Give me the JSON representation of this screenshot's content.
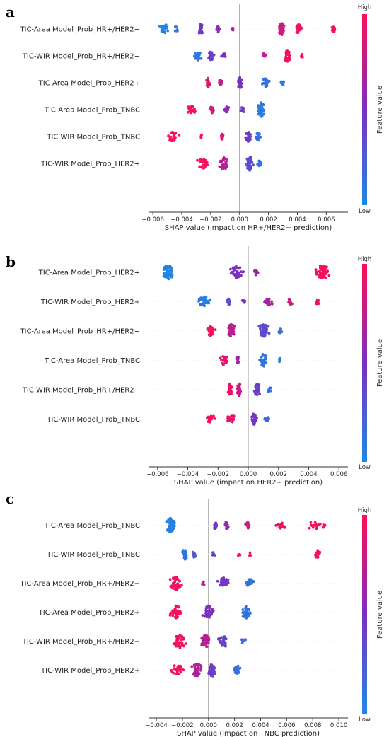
{
  "colorbar": {
    "high_label": "High",
    "low_label": "Low",
    "title": "Feature value",
    "color_low": "#1E88E5",
    "color_mid": "#7B2FBF",
    "color_high": "#FF0D57"
  },
  "chart_data": [
    {
      "panel_label": "a",
      "type": "scatter",
      "subtype": "shap-beeswarm",
      "xlabel": "SHAP value (impact on HR+/HER2− prediction)",
      "xlim": [
        -0.0063,
        0.0075
      ],
      "xticks": [
        -0.006,
        -0.004,
        -0.002,
        0.0,
        0.002,
        0.004,
        0.006
      ],
      "xtick_labels": [
        "−0.006",
        "−0.004",
        "−0.002",
        "0.000",
        "0.002",
        "0.004",
        "0.006"
      ],
      "features": [
        {
          "name": "TIC-Area Model_Prob_HR+/HER2−",
          "clusters": [
            {
              "x": -0.0052,
              "spread": 0.00025,
              "n": 26,
              "color": 0.02
            },
            {
              "x": -0.0044,
              "spread": 0.00018,
              "n": 8,
              "color": 0.12
            },
            {
              "x": -0.0027,
              "spread": 0.00015,
              "n": 26,
              "color": 0.45
            },
            {
              "x": -0.0015,
              "spread": 0.00012,
              "n": 14,
              "color": 0.55
            },
            {
              "x": -0.0005,
              "spread": 0.0001,
              "n": 5,
              "color": 0.7
            },
            {
              "x": 0.0029,
              "spread": 0.00015,
              "n": 34,
              "color": 0.82
            },
            {
              "x": 0.0041,
              "spread": 0.00018,
              "n": 22,
              "color": 0.95
            },
            {
              "x": 0.0065,
              "spread": 0.00012,
              "n": 14,
              "color": 1.0
            }
          ]
        },
        {
          "name": "TIC-WIR Model_Prob_HR+/HER2−",
          "clusters": [
            {
              "x": -0.0029,
              "spread": 0.0002,
              "n": 22,
              "color": 0.12
            },
            {
              "x": -0.002,
              "spread": 0.00017,
              "n": 22,
              "color": 0.4
            },
            {
              "x": -0.0011,
              "spread": 0.00012,
              "n": 10,
              "color": 0.55
            },
            {
              "x": 0.0017,
              "spread": 0.0001,
              "n": 10,
              "color": 0.78
            },
            {
              "x": 0.0033,
              "spread": 0.00018,
              "n": 32,
              "color": 0.95
            },
            {
              "x": 0.0043,
              "spread": 0.0001,
              "n": 6,
              "color": 1.0
            }
          ]
        },
        {
          "name": "TIC-Area Model_Prob_HER2+",
          "clusters": [
            {
              "x": -0.0022,
              "spread": 0.00012,
              "n": 24,
              "color": 0.9
            },
            {
              "x": -0.0013,
              "spread": 0.00015,
              "n": 14,
              "color": 0.72
            },
            {
              "x": 0.0,
              "spread": 0.00017,
              "n": 30,
              "color": 0.48
            },
            {
              "x": 0.0018,
              "spread": 0.00022,
              "n": 24,
              "color": 0.12
            },
            {
              "x": 0.003,
              "spread": 0.00015,
              "n": 10,
              "color": 0.06
            }
          ]
        },
        {
          "name": "TIC-Area Model_Prob_TNBC",
          "clusters": [
            {
              "x": -0.0033,
              "spread": 0.00025,
              "n": 20,
              "color": 1.0
            },
            {
              "x": -0.0019,
              "spread": 0.00012,
              "n": 16,
              "color": 0.82
            },
            {
              "x": -0.0009,
              "spread": 0.00012,
              "n": 16,
              "color": 0.55
            },
            {
              "x": 0.0002,
              "spread": 0.00012,
              "n": 12,
              "color": 0.38
            },
            {
              "x": 0.0015,
              "spread": 0.0002,
              "n": 55,
              "color": 0.08
            }
          ]
        },
        {
          "name": "TIC-WIR Model_Prob_TNBC",
          "clusters": [
            {
              "x": -0.0046,
              "spread": 0.0004,
              "n": 24,
              "color": 1.0
            },
            {
              "x": -0.0026,
              "spread": 0.0001,
              "n": 4,
              "color": 0.95
            },
            {
              "x": -0.0012,
              "spread": 0.0002,
              "n": 10,
              "color": 0.88
            },
            {
              "x": 0.0006,
              "spread": 0.00015,
              "n": 26,
              "color": 0.45
            },
            {
              "x": 0.0013,
              "spread": 0.00015,
              "n": 20,
              "color": 0.12
            }
          ]
        },
        {
          "name": "TIC-WIR Model_Prob_HER2+",
          "clusters": [
            {
              "x": -0.0025,
              "spread": 0.00035,
              "n": 26,
              "color": 0.95
            },
            {
              "x": -0.0011,
              "spread": 0.0003,
              "n": 34,
              "color": 0.7
            },
            {
              "x": 0.0007,
              "spread": 0.00025,
              "n": 40,
              "color": 0.35
            },
            {
              "x": 0.0014,
              "spread": 0.00015,
              "n": 10,
              "color": 0.15
            }
          ]
        }
      ]
    },
    {
      "panel_label": "b",
      "type": "scatter",
      "subtype": "shap-beeswarm",
      "xlabel": "SHAP value (impact on HER2+ prediction)",
      "xlim": [
        -0.0066,
        0.0066
      ],
      "xticks": [
        -0.006,
        -0.004,
        -0.002,
        0.0,
        0.002,
        0.004,
        0.006
      ],
      "xtick_labels": [
        "−0.006",
        "−0.004",
        "−0.002",
        "0.000",
        "0.002",
        "0.004",
        "0.006"
      ],
      "features": [
        {
          "name": "TIC-Area Model_Prob_HER2+",
          "clusters": [
            {
              "x": -0.0053,
              "spread": 0.0003,
              "n": 50,
              "color": 0.03
            },
            {
              "x": -0.0008,
              "spread": 0.00035,
              "n": 34,
              "color": 0.5
            },
            {
              "x": 0.0005,
              "spread": 0.00015,
              "n": 12,
              "color": 0.62
            },
            {
              "x": 0.0049,
              "spread": 0.0004,
              "n": 60,
              "color": 0.95
            }
          ]
        },
        {
          "name": "TIC-WIR Model_Prob_HER2+",
          "clusters": [
            {
              "x": -0.0029,
              "spread": 0.00028,
              "n": 26,
              "color": 0.08
            },
            {
              "x": -0.0013,
              "spread": 0.0001,
              "n": 14,
              "color": 0.3
            },
            {
              "x": -0.0003,
              "spread": 0.0001,
              "n": 6,
              "color": 0.5
            },
            {
              "x": 0.0013,
              "spread": 0.00025,
              "n": 18,
              "color": 0.65
            },
            {
              "x": 0.0028,
              "spread": 0.00015,
              "n": 12,
              "color": 0.8
            },
            {
              "x": 0.0046,
              "spread": 0.00012,
              "n": 10,
              "color": 1.0
            }
          ]
        },
        {
          "name": "TIC-Area Model_Prob_HR+/HER2−",
          "clusters": [
            {
              "x": -0.0025,
              "spread": 0.00025,
              "n": 30,
              "color": 1.0
            },
            {
              "x": -0.0011,
              "spread": 0.0002,
              "n": 40,
              "color": 0.75
            },
            {
              "x": 0.001,
              "spread": 0.0003,
              "n": 50,
              "color": 0.35
            },
            {
              "x": 0.0021,
              "spread": 0.00012,
              "n": 10,
              "color": 0.12
            }
          ]
        },
        {
          "name": "TIC-Area Model_Prob_TNBC",
          "clusters": [
            {
              "x": -0.0016,
              "spread": 0.0002,
              "n": 24,
              "color": 0.92
            },
            {
              "x": -0.0007,
              "spread": 8e-05,
              "n": 16,
              "color": 0.6
            },
            {
              "x": 0.001,
              "spread": 0.0002,
              "n": 36,
              "color": 0.12
            },
            {
              "x": 0.0021,
              "spread": 8e-05,
              "n": 4,
              "color": 0.05
            }
          ]
        },
        {
          "name": "TIC-WIR Model_Prob_HR+/HER2−",
          "clusters": [
            {
              "x": -0.0012,
              "spread": 0.0001,
              "n": 34,
              "color": 0.95
            },
            {
              "x": -0.0006,
              "spread": 0.00012,
              "n": 36,
              "color": 0.78
            },
            {
              "x": 0.0006,
              "spread": 0.00018,
              "n": 34,
              "color": 0.4
            },
            {
              "x": 0.0014,
              "spread": 0.00012,
              "n": 8,
              "color": 0.15
            }
          ]
        },
        {
          "name": "TIC-WIR Model_Prob_TNBC",
          "clusters": [
            {
              "x": -0.0025,
              "spread": 0.00025,
              "n": 16,
              "color": 1.0
            },
            {
              "x": -0.0011,
              "spread": 0.00025,
              "n": 16,
              "color": 0.92
            },
            {
              "x": 0.0004,
              "spread": 0.00015,
              "n": 30,
              "color": 0.45
            },
            {
              "x": 0.0012,
              "spread": 0.00015,
              "n": 12,
              "color": 0.15
            }
          ]
        }
      ]
    },
    {
      "panel_label": "c",
      "type": "scatter",
      "subtype": "shap-beeswarm",
      "xlabel": "SHAP value (impact on TNBC prediction)",
      "xlim": [
        -0.0046,
        0.0107
      ],
      "xticks": [
        -0.004,
        -0.002,
        0.0,
        0.002,
        0.004,
        0.006,
        0.008,
        0.01
      ],
      "xtick_labels": [
        "−0.004",
        "−0.002",
        "0.000",
        "0.002",
        "0.004",
        "0.006",
        "0.008",
        "0.010"
      ],
      "features": [
        {
          "name": "TIC-Area Model_Prob_TNBC",
          "clusters": [
            {
              "x": -0.0029,
              "spread": 0.00035,
              "n": 50,
              "color": 0.03
            },
            {
              "x": 0.0005,
              "spread": 0.0001,
              "n": 16,
              "color": 0.45
            },
            {
              "x": 0.0014,
              "spread": 0.0001,
              "n": 20,
              "color": 0.6
            },
            {
              "x": 0.003,
              "spread": 0.00012,
              "n": 16,
              "color": 0.85
            },
            {
              "x": 0.0055,
              "spread": 0.0004,
              "n": 16,
              "color": 0.97
            },
            {
              "x": 0.0082,
              "spread": 0.0006,
              "n": 18,
              "color": 1.0
            }
          ]
        },
        {
          "name": "TIC-WIR Model_Prob_TNBC",
          "clusters": [
            {
              "x": -0.0018,
              "spread": 0.0002,
              "n": 30,
              "color": 0.12
            },
            {
              "x": -0.0011,
              "spread": 0.0001,
              "n": 16,
              "color": 0.25
            },
            {
              "x": 0.0004,
              "spread": 0.0001,
              "n": 5,
              "color": 0.4
            },
            {
              "x": 0.0023,
              "spread": 0.0001,
              "n": 4,
              "color": 0.9
            },
            {
              "x": 0.0032,
              "spread": 0.0001,
              "n": 4,
              "color": 0.95
            },
            {
              "x": 0.0084,
              "spread": 0.0002,
              "n": 18,
              "color": 1.0
            }
          ]
        },
        {
          "name": "TIC-Area Model_Prob_HR+/HER2−",
          "clusters": [
            {
              "x": -0.0025,
              "spread": 0.00035,
              "n": 40,
              "color": 0.95
            },
            {
              "x": -0.0004,
              "spread": 0.0001,
              "n": 5,
              "color": 0.75
            },
            {
              "x": 0.0012,
              "spread": 0.00035,
              "n": 30,
              "color": 0.45
            },
            {
              "x": 0.0032,
              "spread": 0.00025,
              "n": 20,
              "color": 0.12
            }
          ]
        },
        {
          "name": "TIC-Area Model_Prob_HER2+",
          "clusters": [
            {
              "x": -0.0025,
              "spread": 0.00035,
              "n": 36,
              "color": 0.95
            },
            {
              "x": 0.0,
              "spread": 0.00035,
              "n": 36,
              "color": 0.5
            },
            {
              "x": 0.0029,
              "spread": 0.0003,
              "n": 34,
              "color": 0.12
            }
          ]
        },
        {
          "name": "TIC-WIR Model_Prob_HR+/HER2−",
          "clusters": [
            {
              "x": -0.0022,
              "spread": 0.00035,
              "n": 40,
              "color": 0.95
            },
            {
              "x": -0.0002,
              "spread": 0.0003,
              "n": 40,
              "color": 0.72
            },
            {
              "x": 0.0012,
              "spread": 0.00035,
              "n": 30,
              "color": 0.4
            },
            {
              "x": 0.0027,
              "spread": 0.0002,
              "n": 10,
              "color": 0.15
            }
          ]
        },
        {
          "name": "TIC-WIR Model_Prob_HER2+",
          "clusters": [
            {
              "x": -0.0024,
              "spread": 0.00035,
              "n": 30,
              "color": 0.95
            },
            {
              "x": -0.0009,
              "spread": 0.0003,
              "n": 40,
              "color": 0.7
            },
            {
              "x": 0.0003,
              "spread": 0.00025,
              "n": 34,
              "color": 0.42
            },
            {
              "x": 0.0022,
              "spread": 0.00025,
              "n": 24,
              "color": 0.1
            }
          ]
        }
      ]
    }
  ]
}
